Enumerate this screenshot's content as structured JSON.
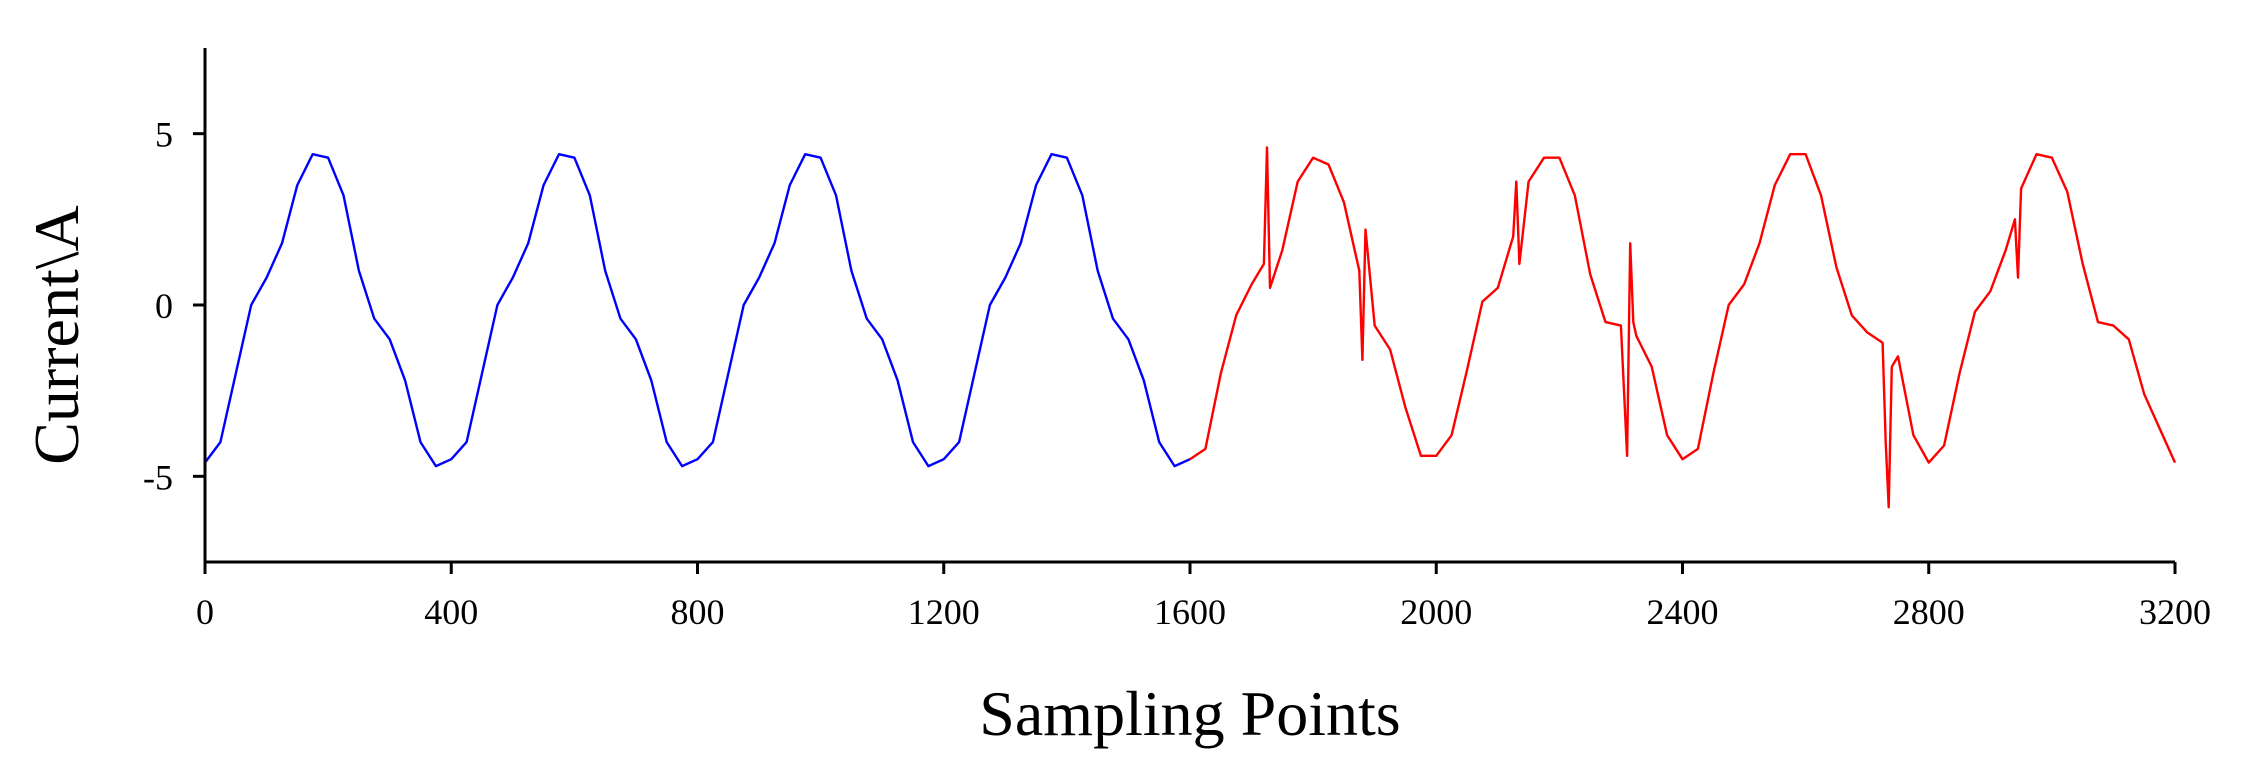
{
  "chart_data": {
    "type": "line",
    "title": "",
    "xlabel": "Sampling Points",
    "ylabel": "Current\\A",
    "xlim": [
      0,
      3200
    ],
    "ylim": [
      -7.5,
      7.5
    ],
    "xticks": [
      0,
      400,
      800,
      1200,
      1600,
      2000,
      2400,
      2800,
      3200
    ],
    "yticks": [
      -5,
      0,
      5
    ],
    "grid": false,
    "legend": "none",
    "series": [
      {
        "color": "#0000ff",
        "x": [
          0,
          25,
          50,
          75,
          100,
          125,
          150,
          175,
          200,
          225,
          250,
          275,
          300,
          325,
          350,
          375,
          400,
          425,
          450,
          475,
          500,
          525,
          550,
          575,
          600,
          625,
          650,
          675,
          700,
          725,
          750,
          775,
          800,
          825,
          850,
          875,
          900,
          925,
          950,
          975,
          1000,
          1025,
          1050,
          1075,
          1100,
          1125,
          1150,
          1175,
          1200,
          1225,
          1250,
          1275,
          1300,
          1325,
          1350,
          1375,
          1400,
          1425,
          1450,
          1475,
          1500,
          1525,
          1550,
          1575,
          1600
        ],
        "y": [
          -4.6,
          -4.0,
          -2.0,
          0.0,
          0.8,
          1.8,
          3.5,
          4.4,
          4.3,
          3.2,
          1.0,
          -0.4,
          -1.0,
          -2.2,
          -4.0,
          -4.7,
          -4.5,
          -4.0,
          -2.0,
          0.0,
          0.8,
          1.8,
          3.5,
          4.4,
          4.3,
          3.2,
          1.0,
          -0.4,
          -1.0,
          -2.2,
          -4.0,
          -4.7,
          -4.5,
          -4.0,
          -2.0,
          0.0,
          0.8,
          1.8,
          3.5,
          4.4,
          4.3,
          3.2,
          1.0,
          -0.4,
          -1.0,
          -2.2,
          -4.0,
          -4.7,
          -4.5,
          -4.0,
          -2.0,
          0.0,
          0.8,
          1.8,
          3.5,
          4.4,
          4.3,
          3.2,
          1.0,
          -0.4,
          -1.0,
          -2.2,
          -4.0,
          -4.7,
          -4.5
        ]
      },
      {
        "color": "#ff0000",
        "x": [
          1600,
          1625,
          1650,
          1675,
          1700,
          1720,
          1725,
          1730,
          1750,
          1775,
          1800,
          1825,
          1850,
          1875,
          1880,
          1885,
          1900,
          1925,
          1950,
          1975,
          2000,
          2025,
          2050,
          2075,
          2100,
          2125,
          2130,
          2135,
          2150,
          2175,
          2200,
          2225,
          2250,
          2275,
          2300,
          2310,
          2315,
          2320,
          2325,
          2350,
          2375,
          2400,
          2425,
          2450,
          2475,
          2500,
          2525,
          2550,
          2575,
          2600,
          2625,
          2650,
          2675,
          2700,
          2725,
          2730,
          2735,
          2740,
          2750,
          2775,
          2800,
          2825,
          2850,
          2875,
          2900,
          2925,
          2940,
          2945,
          2950,
          2975,
          3000,
          3025,
          3050,
          3075,
          3100,
          3125,
          3150,
          3175,
          3200
        ],
        "y": [
          -4.5,
          -4.2,
          -2.0,
          -0.3,
          0.6,
          1.2,
          4.6,
          0.5,
          1.6,
          3.6,
          4.3,
          4.1,
          3.0,
          1.0,
          -1.6,
          2.2,
          -0.6,
          -1.3,
          -3.0,
          -4.4,
          -4.4,
          -3.8,
          -1.9,
          0.1,
          0.5,
          2.0,
          3.6,
          1.2,
          3.6,
          4.3,
          4.3,
          3.2,
          0.9,
          -0.5,
          -0.6,
          -4.4,
          1.8,
          -0.5,
          -0.9,
          -1.8,
          -3.8,
          -4.5,
          -4.2,
          -2.0,
          0.0,
          0.6,
          1.8,
          3.5,
          4.4,
          4.4,
          3.2,
          1.1,
          -0.3,
          -0.8,
          -1.1,
          -4.0,
          -5.9,
          -1.8,
          -1.5,
          -3.8,
          -4.6,
          -4.1,
          -2.0,
          -0.2,
          0.4,
          1.6,
          2.5,
          0.8,
          3.4,
          4.4,
          4.3,
          3.3,
          1.2,
          -0.5,
          -0.6,
          -1.0,
          -2.6,
          -3.6,
          -4.6
        ]
      }
    ]
  }
}
